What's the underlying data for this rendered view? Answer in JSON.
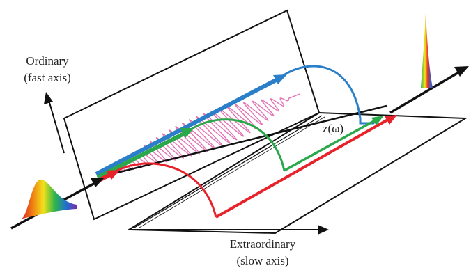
{
  "labels": {
    "ordinary": "Ordinary",
    "ordinary_sub": "(fast axis)",
    "extraordinary": "Extraordinary",
    "extraordinary_sub": "(slow axis)",
    "z_axis": "z(ω)"
  },
  "colors": {
    "frame": "#111111",
    "wave": "#e06cb0",
    "red": "#e8222a",
    "green": "#2aa84a",
    "blue": "#2a7fc8"
  }
}
